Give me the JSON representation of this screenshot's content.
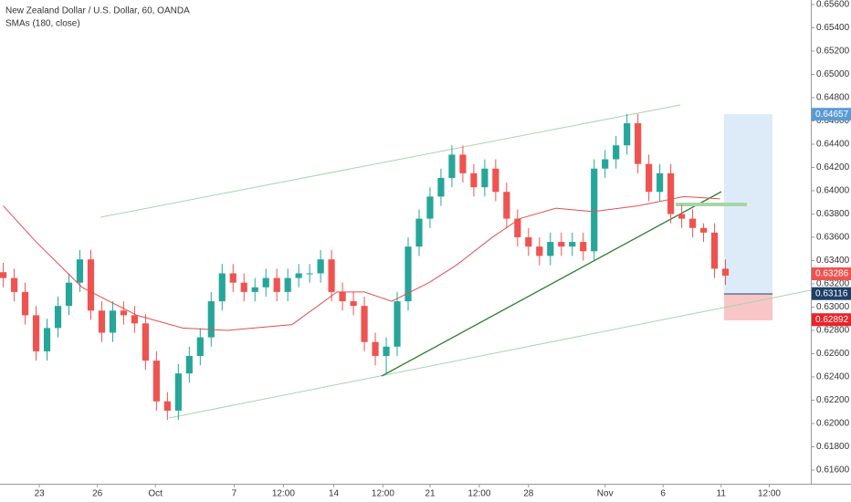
{
  "chart_data": {
    "type": "candlestick",
    "title": "New Zealand Dollar / U.S. Dollar, 60, OANDA",
    "subtitle": "SMAs (180, close)",
    "up_color": "#26a69a",
    "down_color": "#ef5350",
    "open": [
      0.633,
      0.6325,
      0.6313,
      0.6293,
      0.6262,
      0.6282,
      0.6301,
      0.6321,
      0.6341,
      0.6297,
      0.6278,
      0.6297,
      0.6293,
      0.6286,
      0.6254,
      0.6219,
      0.6211,
      0.6243,
      0.6258,
      0.6274,
      0.6305,
      0.6329,
      0.6321,
      0.6313,
      0.6317,
      0.6325,
      0.6313,
      0.6325,
      0.6329,
      0.6329,
      0.6341,
      0.6313,
      0.6305,
      0.6301,
      0.627,
      0.6258,
      0.6266,
      0.6305,
      0.6352,
      0.6376,
      0.6395,
      0.6411,
      0.6431,
      0.6415,
      0.6403,
      0.6419,
      0.6399,
      0.6376,
      0.636,
      0.6352,
      0.6344,
      0.6356,
      0.6352,
      0.6356,
      0.6348,
      0.6419,
      0.6427,
      0.6439,
      0.6458,
      0.6423,
      0.6399,
      0.6415,
      0.638,
      0.6376,
      0.6368,
      0.6364,
      0.6333
    ],
    "high": [
      0.6338,
      0.6333,
      0.6321,
      0.6301,
      0.629,
      0.6309,
      0.6329,
      0.6349,
      0.6349,
      0.6305,
      0.6305,
      0.6305,
      0.6301,
      0.6294,
      0.6262,
      0.6227,
      0.6251,
      0.6266,
      0.6282,
      0.6313,
      0.6337,
      0.6337,
      0.6329,
      0.6325,
      0.6333,
      0.6333,
      0.6333,
      0.6337,
      0.6337,
      0.6349,
      0.6349,
      0.6321,
      0.6313,
      0.6309,
      0.6278,
      0.6274,
      0.6313,
      0.636,
      0.6384,
      0.6403,
      0.6419,
      0.6439,
      0.6439,
      0.6423,
      0.6427,
      0.6427,
      0.6407,
      0.6384,
      0.6368,
      0.636,
      0.6364,
      0.6364,
      0.6364,
      0.6364,
      0.6427,
      0.6435,
      0.6447,
      0.6466,
      0.6466,
      0.6431,
      0.6423,
      0.6423,
      0.6388,
      0.6384,
      0.6372,
      0.6372,
      0.6341
    ],
    "low": [
      0.6317,
      0.6305,
      0.6285,
      0.6254,
      0.6254,
      0.6274,
      0.6293,
      0.6313,
      0.6289,
      0.627,
      0.627,
      0.6285,
      0.6278,
      0.6246,
      0.6211,
      0.6203,
      0.6203,
      0.6235,
      0.625,
      0.6266,
      0.6297,
      0.6313,
      0.6305,
      0.6305,
      0.6309,
      0.6305,
      0.6305,
      0.6317,
      0.6321,
      0.6321,
      0.6305,
      0.6297,
      0.6293,
      0.6262,
      0.625,
      0.6242,
      0.6258,
      0.6297,
      0.6344,
      0.6368,
      0.6387,
      0.6403,
      0.6407,
      0.6395,
      0.6395,
      0.6391,
      0.6368,
      0.6352,
      0.6344,
      0.6336,
      0.6336,
      0.6344,
      0.6344,
      0.634,
      0.634,
      0.6411,
      0.6419,
      0.6431,
      0.6415,
      0.6391,
      0.6391,
      0.6372,
      0.6368,
      0.636,
      0.6356,
      0.6325,
      0.6319
    ],
    "close": [
      0.6325,
      0.6313,
      0.6293,
      0.6262,
      0.6282,
      0.6301,
      0.6321,
      0.6341,
      0.6297,
      0.6278,
      0.6297,
      0.6293,
      0.6286,
      0.6254,
      0.6219,
      0.6211,
      0.6243,
      0.6258,
      0.6274,
      0.6305,
      0.6329,
      0.6321,
      0.6313,
      0.6317,
      0.6325,
      0.6313,
      0.6325,
      0.6329,
      0.6329,
      0.6341,
      0.6313,
      0.6305,
      0.6301,
      0.627,
      0.6258,
      0.6266,
      0.6305,
      0.6352,
      0.6376,
      0.6395,
      0.6411,
      0.6431,
      0.6415,
      0.6403,
      0.6419,
      0.6399,
      0.6376,
      0.636,
      0.6352,
      0.6344,
      0.6356,
      0.6352,
      0.6356,
      0.6348,
      0.6419,
      0.6427,
      0.6439,
      0.6458,
      0.6423,
      0.6399,
      0.6415,
      0.638,
      0.6376,
      0.6368,
      0.6364,
      0.6333,
      0.6327
    ],
    "sma": {
      "color": "#e05050",
      "x": [
        0,
        3.0,
        7.2,
        12.2,
        16.4,
        20.5,
        26.4,
        30.5,
        33,
        35.5,
        38.9,
        41.4,
        44.7,
        47.2,
        50.5,
        53.9,
        58,
        62.2,
        65.5
      ],
      "values": [
        0.6387,
        0.6356,
        0.6317,
        0.6293,
        0.6282,
        0.628,
        0.6285,
        0.6313,
        0.6313,
        0.6305,
        0.6321,
        0.6336,
        0.636,
        0.6376,
        0.6385,
        0.6382,
        0.6387,
        0.6395,
        0.6393
      ]
    },
    "xlim": [
      -0.3,
      73.8
    ],
    "xticks": [
      {
        "value": 3.3,
        "label": "23"
      },
      {
        "value": 8.6,
        "label": "26"
      },
      {
        "value": 13.9,
        "label": "Oct"
      },
      {
        "value": 21.1,
        "label": "7"
      },
      {
        "value": 25.6,
        "label": "12:00"
      },
      {
        "value": 30.2,
        "label": "14"
      },
      {
        "value": 34.7,
        "label": "12:00"
      },
      {
        "value": 39,
        "label": "21"
      },
      {
        "value": 43.5,
        "label": "12:00"
      },
      {
        "value": 48,
        "label": "28"
      },
      {
        "value": 55,
        "label": "Nov"
      },
      {
        "value": 60.3,
        "label": "6"
      },
      {
        "value": 65.6,
        "label": "11"
      },
      {
        "value": 70,
        "label": "12:00"
      }
    ],
    "ylim": [
      0.61482,
      0.65639
    ],
    "yticks": [
      {
        "value": 0.656,
        "label": "0.65600"
      },
      {
        "value": 0.654,
        "label": "0.65400"
      },
      {
        "value": 0.652,
        "label": "0.65200"
      },
      {
        "value": 0.65,
        "label": "0.65000"
      },
      {
        "value": 0.648,
        "label": "0.64800"
      },
      {
        "value": 0.646,
        "label": "0.64600"
      },
      {
        "value": 0.644,
        "label": "0.64400"
      },
      {
        "value": 0.642,
        "label": "0.64200"
      },
      {
        "value": 0.64,
        "label": "0.64000"
      },
      {
        "value": 0.638,
        "label": "0.63800"
      },
      {
        "value": 0.636,
        "label": "0.63600"
      },
      {
        "value": 0.634,
        "label": "0.63400"
      },
      {
        "value": 0.632,
        "label": "0.63200"
      },
      {
        "value": 0.63,
        "label": "0.63000"
      },
      {
        "value": 0.628,
        "label": "0.62800"
      },
      {
        "value": 0.626,
        "label": "0.62600"
      },
      {
        "value": 0.624,
        "label": "0.62400"
      },
      {
        "value": 0.622,
        "label": "0.62200"
      },
      {
        "value": 0.62,
        "label": "0.62000"
      },
      {
        "value": 0.618,
        "label": "0.61800"
      },
      {
        "value": 0.616,
        "label": "0.61600"
      }
    ],
    "price_labels": [
      {
        "value": 0.64657,
        "color": "#5b9bd5"
      },
      {
        "value": 0.63286,
        "color": "#ef5350"
      },
      {
        "value": 0.63116,
        "color": "#1e3f66"
      },
      {
        "value": 0.62892,
        "color": "#e8242b"
      }
    ]
  }
}
